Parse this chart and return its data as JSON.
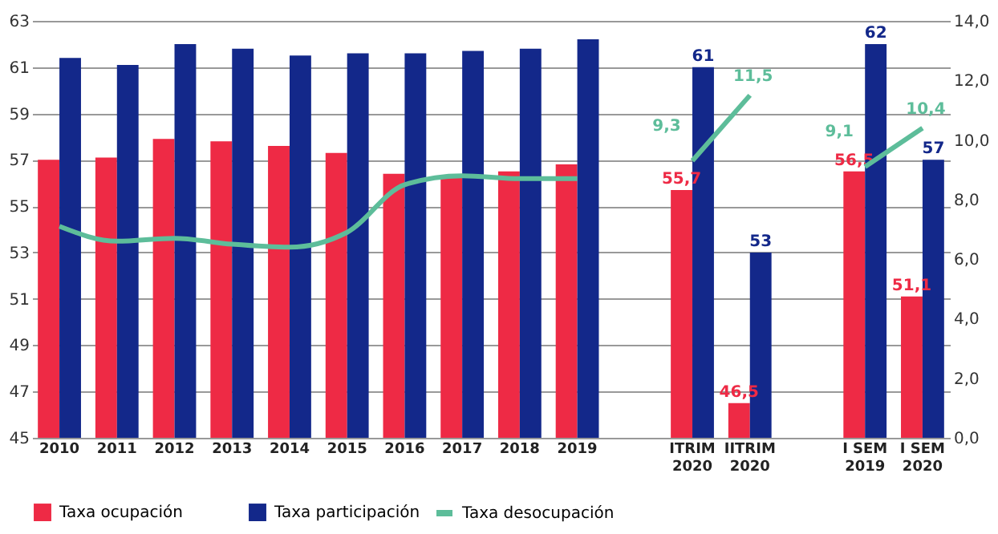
{
  "chart_data": {
    "type": "bar",
    "categories": [
      "2010",
      "2011",
      "2012",
      "2013",
      "2014",
      "2015",
      "2016",
      "2017",
      "2018",
      "2019",
      null,
      "ITRIM\n2020",
      "IITRIM\n2020",
      null,
      "I SEM\n2019",
      "I SEM\n2020"
    ],
    "series": [
      {
        "name": "Taxa ocupación",
        "color": "#ee2a45",
        "values": [
          57.0,
          57.1,
          57.9,
          57.8,
          57.6,
          57.3,
          56.4,
          56.3,
          56.5,
          56.8,
          null,
          55.7,
          46.5,
          null,
          56.5,
          51.1
        ],
        "value_labels": [
          null,
          null,
          null,
          null,
          null,
          null,
          null,
          null,
          null,
          null,
          null,
          "55,7",
          "46,5",
          null,
          "56,5",
          "51,1"
        ]
      },
      {
        "name": "Taxa participación",
        "color": "#13288a",
        "values": [
          61.4,
          61.1,
          62.0,
          61.8,
          61.5,
          61.6,
          61.6,
          61.7,
          61.8,
          62.2,
          null,
          61,
          53,
          null,
          62,
          57
        ],
        "value_labels": [
          null,
          null,
          null,
          null,
          null,
          null,
          null,
          null,
          null,
          null,
          null,
          "61",
          "53",
          null,
          "62",
          "57"
        ]
      },
      {
        "name": "Taxa desocupación",
        "type": "line",
        "axis": "y2",
        "color": "#5dbd9a",
        "values": [
          7.1,
          6.6,
          6.7,
          6.5,
          6.4,
          6.9,
          8.5,
          8.8,
          8.7,
          8.7,
          null,
          9.3,
          11.5,
          null,
          9.1,
          10.4
        ],
        "value_labels": [
          null,
          null,
          null,
          null,
          null,
          null,
          null,
          null,
          null,
          null,
          null,
          "9,3",
          "11,5",
          null,
          "9,1",
          "10,4"
        ]
      }
    ],
    "ylim": [
      45,
      63
    ],
    "yticks": [
      45,
      47,
      49,
      51,
      53,
      55,
      57,
      59,
      61,
      63
    ],
    "y2lim": [
      0,
      14
    ],
    "y2ticks": [
      {
        "value": 0,
        "label": "0,0"
      },
      {
        "value": 2,
        "label": "2,0"
      },
      {
        "value": 4,
        "label": "4,0"
      },
      {
        "value": 6,
        "label": "6,0"
      },
      {
        "value": 8,
        "label": "8,0"
      },
      {
        "value": 10,
        "label": "10,0"
      },
      {
        "value": 12,
        "label": "12,0"
      },
      {
        "value": 14,
        "label": "14,0"
      }
    ],
    "grid": "y",
    "legend": "bottom"
  }
}
